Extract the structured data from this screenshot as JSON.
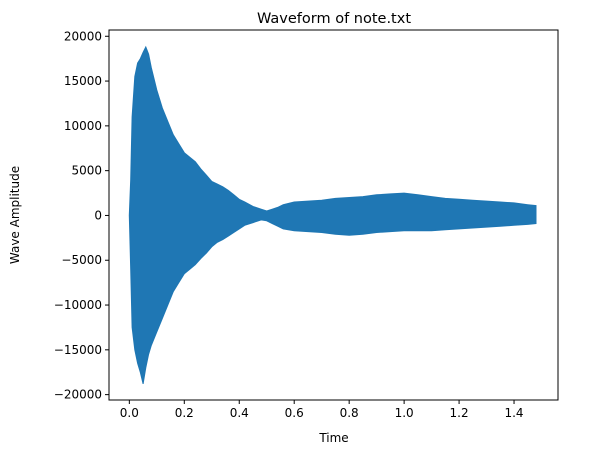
{
  "chart_data": {
    "type": "area",
    "title": "Waveform of note.txt",
    "xlabel": "Time",
    "ylabel": "Wave Amplitude",
    "xlim": [
      -0.074,
      1.56
    ],
    "ylim": [
      -20600,
      20700
    ],
    "x_ticks": [
      0.0,
      0.2,
      0.4,
      0.6,
      0.8,
      1.0,
      1.2,
      1.4
    ],
    "x_tick_labels": [
      "0.0",
      "0.2",
      "0.4",
      "0.6",
      "0.8",
      "1.0",
      "1.2",
      "1.4"
    ],
    "y_ticks": [
      -20000,
      -15000,
      -10000,
      -5000,
      0,
      5000,
      10000,
      15000,
      20000
    ],
    "y_tick_labels": [
      "−20000",
      "−15000",
      "−10000",
      "−5000",
      "0",
      "5000",
      "10000",
      "15000",
      "20000"
    ],
    "grid": false,
    "color": "#1f77b4",
    "series": [
      {
        "x": [
          0.0,
          0.005,
          0.01,
          0.02,
          0.03,
          0.04,
          0.05,
          0.06,
          0.07,
          0.08,
          0.1,
          0.12,
          0.14,
          0.16,
          0.18,
          0.2,
          0.22,
          0.24,
          0.26,
          0.28,
          0.3,
          0.32,
          0.34,
          0.36,
          0.38,
          0.4,
          0.42,
          0.45,
          0.48,
          0.5,
          0.52,
          0.54,
          0.56,
          0.6,
          0.65,
          0.7,
          0.75,
          0.8,
          0.85,
          0.9,
          0.95,
          1.0,
          1.05,
          1.1,
          1.15,
          1.2,
          1.25,
          1.3,
          1.35,
          1.4,
          1.45,
          1.48
        ],
        "upper": [
          0,
          4000,
          11000,
          15500,
          17000,
          17500,
          18200,
          18800,
          18000,
          16500,
          14000,
          12000,
          10500,
          9000,
          8000,
          7000,
          6500,
          6000,
          5200,
          4500,
          3800,
          3500,
          3200,
          2800,
          2300,
          1800,
          1500,
          1000,
          700,
          500,
          700,
          900,
          1200,
          1500,
          1600,
          1700,
          1900,
          2000,
          2100,
          2300,
          2400,
          2500,
          2300,
          2100,
          1900,
          1800,
          1700,
          1600,
          1500,
          1400,
          1200,
          1100
        ],
        "lower": [
          0,
          -6000,
          -12500,
          -15000,
          -16500,
          -17500,
          -18800,
          -17000,
          -15500,
          -14500,
          -13000,
          -11500,
          -10000,
          -8500,
          -7500,
          -6500,
          -6000,
          -5500,
          -4800,
          -4200,
          -3500,
          -3000,
          -2700,
          -2300,
          -1900,
          -1500,
          -1100,
          -800,
          -500,
          -600,
          -900,
          -1200,
          -1500,
          -1700,
          -1800,
          -1900,
          -2100,
          -2200,
          -2100,
          -1900,
          -1800,
          -1700,
          -1700,
          -1700,
          -1600,
          -1500,
          -1400,
          -1300,
          -1200,
          -1100,
          -1000,
          -900
        ]
      }
    ]
  }
}
